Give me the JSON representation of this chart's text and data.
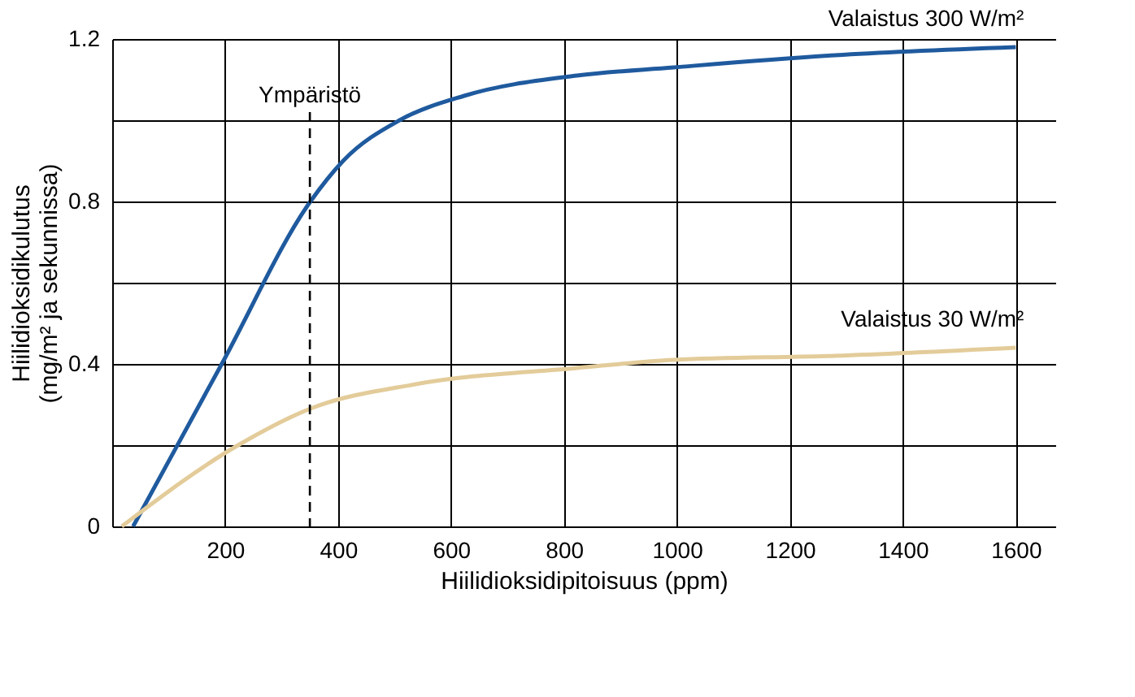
{
  "chart_data": {
    "type": "line",
    "xlabel": "Hiilidioksidipitoisuus (ppm)",
    "ylabel": "Hiilidioksidikulutus\n(mg/m² ja sekunnissa)",
    "xlim": [
      0,
      1670
    ],
    "xticks": [
      200,
      400,
      600,
      800,
      1000,
      1200,
      1400,
      1600
    ],
    "ylim": [
      0,
      1.2
    ],
    "yticks": [
      0,
      {
        "value": 0.2,
        "label": null
      },
      0.4,
      {
        "value": 0.6,
        "label": null
      },
      0.8,
      {
        "value": 1.0,
        "label": null
      },
      1.2
    ],
    "grid": true,
    "marker": "none",
    "line_style": "solid",
    "series": [
      {
        "name": "Valaistus 300 W/m²",
        "color": "#1f5a9e",
        "x": [
          37,
          194,
          351,
          409,
          509,
          623,
          823,
          994,
          1280,
          1600
        ],
        "values": [
          0,
          0.4,
          0.8,
          0.9,
          1.0,
          1.06,
          1.11,
          1.13,
          1.16,
          1.18
        ]
      },
      {
        "name": "Valaistus 30 W/m²",
        "color": "#e3cc9a",
        "x": [
          17,
          223,
          351,
          537,
          823,
          994,
          1280,
          1600
        ],
        "values": [
          0,
          0.2,
          0.29,
          0.35,
          0.39,
          0.41,
          0.42,
          0.44
        ]
      }
    ],
    "ref_lines": [
      {
        "axis": "x",
        "value": 350,
        "label": "Ympäristö",
        "color": "#000000",
        "line_style": "dashed"
      }
    ]
  }
}
